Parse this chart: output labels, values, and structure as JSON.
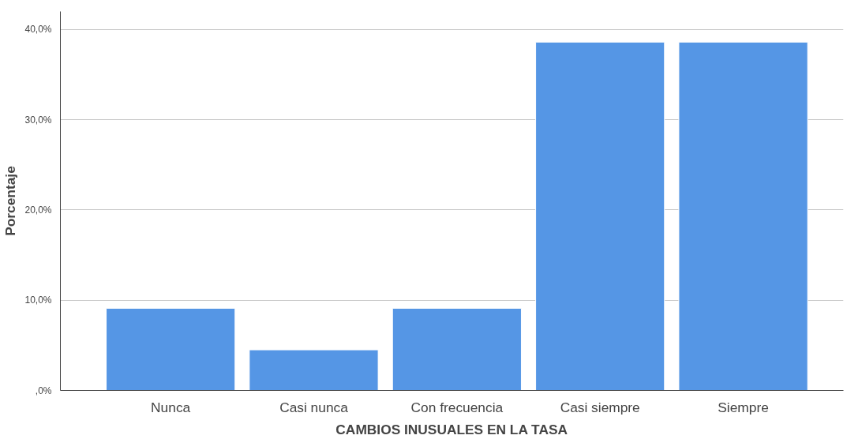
{
  "chart_data": {
    "type": "bar",
    "xlabel": "CAMBIOS INUSUALES EN LA TASA",
    "ylabel": "Porcentaje",
    "categories": [
      "Nunca",
      "Casi nunca",
      "Con frecuencia",
      "Casi siempre",
      "Siempre"
    ],
    "values": [
      9.1,
      4.5,
      9.1,
      38.6,
      38.6
    ],
    "color": "#5596e5",
    "ylim": [
      0,
      42
    ],
    "yticks": [
      {
        "value": 0,
        "label": ",0%"
      },
      {
        "value": 10,
        "label": "10,0%"
      },
      {
        "value": 20,
        "label": "20,0%"
      },
      {
        "value": 30,
        "label": "30,0%"
      },
      {
        "value": 40,
        "label": "40,0%"
      }
    ],
    "grid": "y"
  }
}
